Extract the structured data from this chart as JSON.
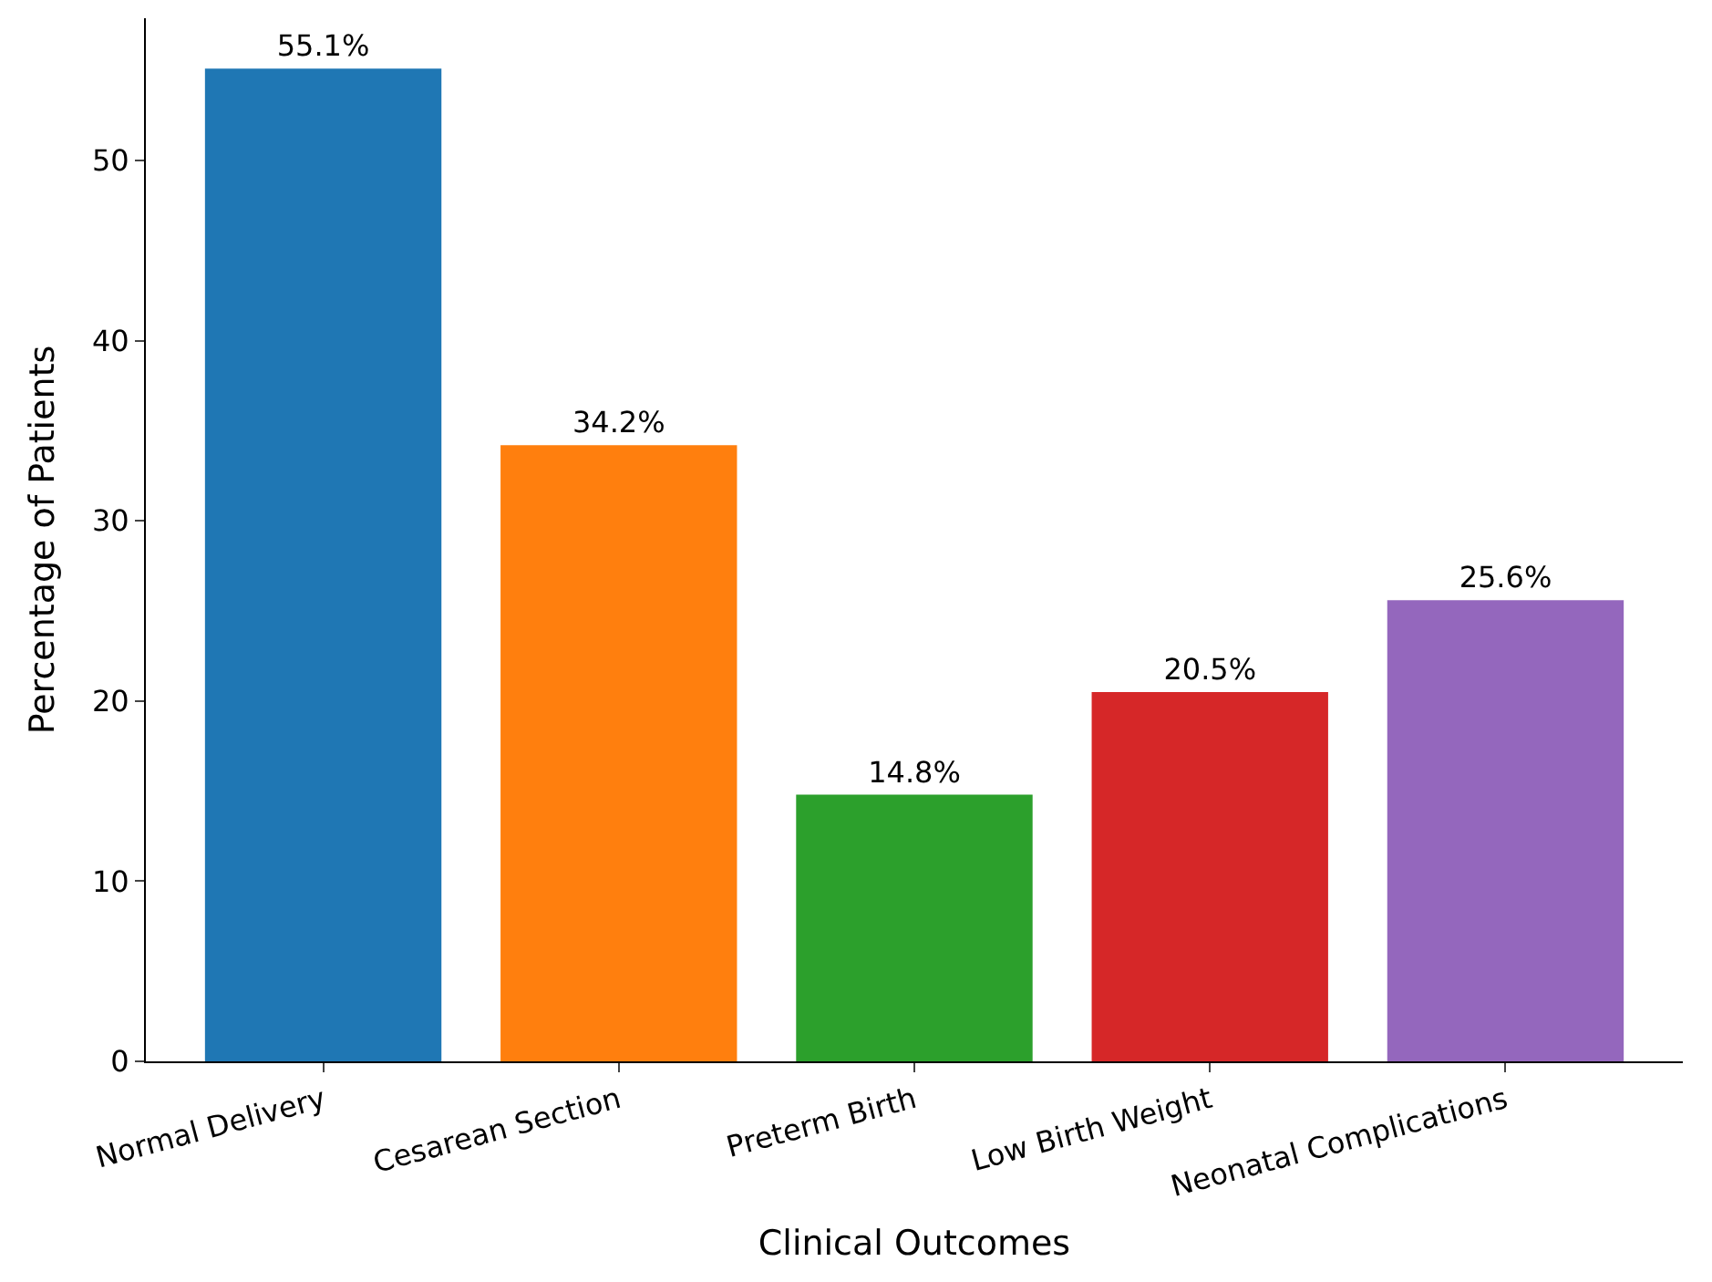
{
  "chart_data": {
    "type": "bar",
    "categories": [
      "Normal Delivery",
      "Cesarean Section",
      "Preterm Birth",
      "Low Birth Weight",
      "Neonatal Complications"
    ],
    "values": [
      55.1,
      34.2,
      14.8,
      20.5,
      25.6
    ],
    "value_labels": [
      "55.1%",
      "34.2%",
      "14.8%",
      "20.5%",
      "25.6%"
    ],
    "colors": [
      "#1f77b4",
      "#ff7f0e",
      "#2ca02c",
      "#d62728",
      "#9467bd"
    ],
    "xlabel": "Clinical Outcomes",
    "ylabel": "Percentage of Patients",
    "ylim": [
      0,
      57.9
    ],
    "yticks": [
      0,
      10,
      20,
      30,
      40,
      50
    ]
  }
}
